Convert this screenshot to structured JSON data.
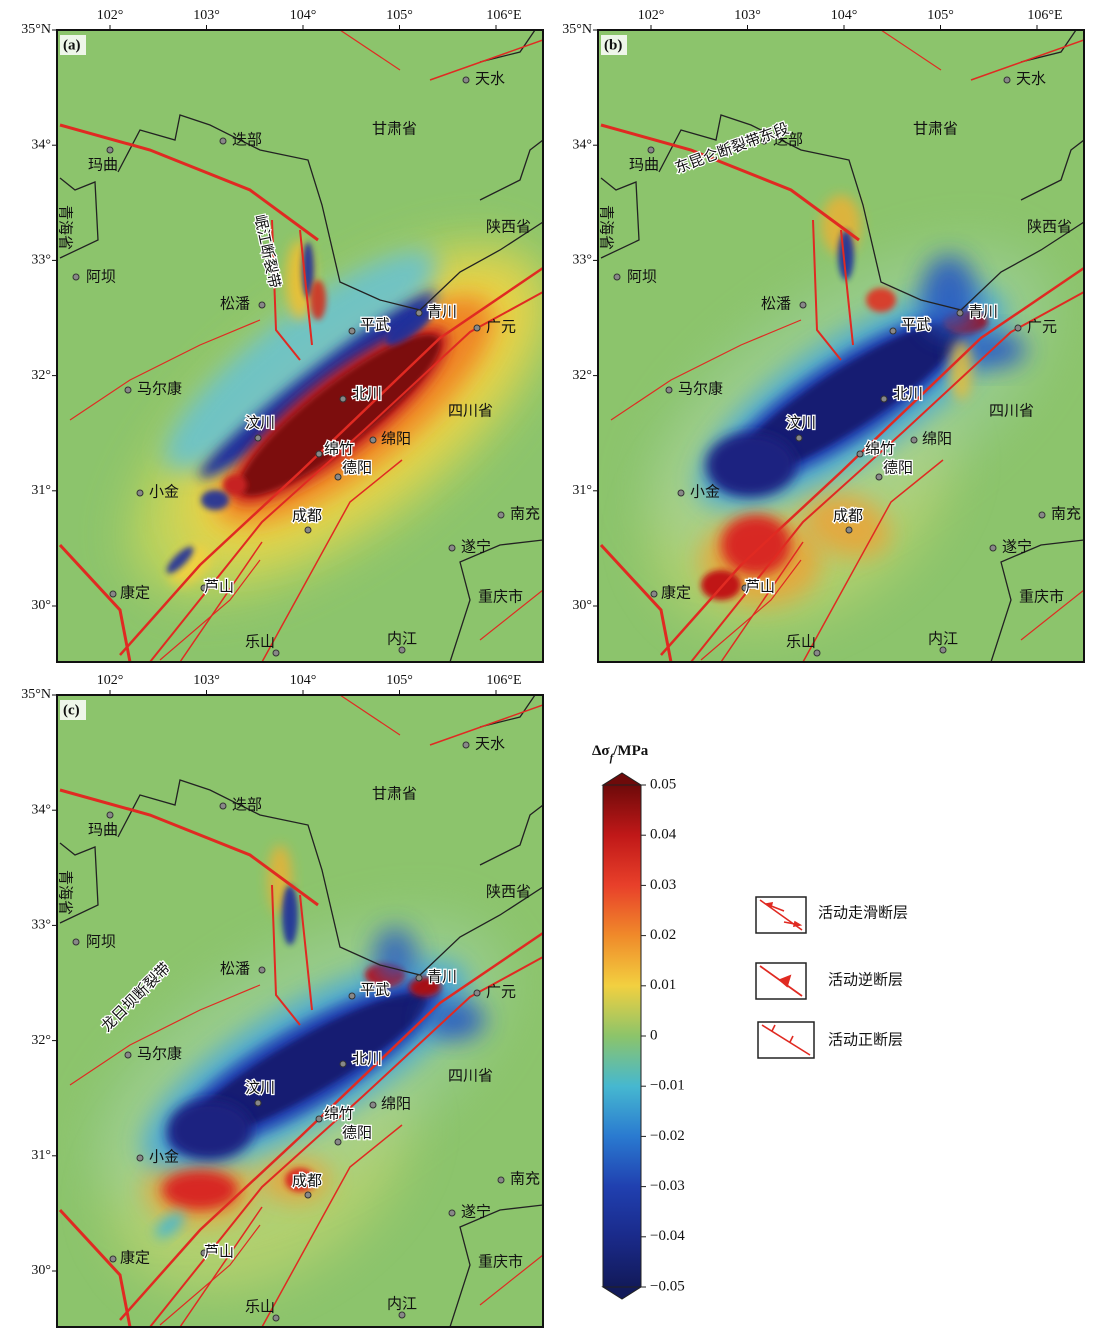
{
  "panels": [
    {
      "label": "(a)",
      "fault_zone": "岷江断裂带"
    },
    {
      "label": "(b)",
      "fault_zone": "东昆仑断裂带东段"
    },
    {
      "label": "(c)",
      "fault_zone": "龙日坝断裂带"
    }
  ],
  "x_labels": [
    "102°",
    "103°",
    "104°",
    "105°",
    "106°E"
  ],
  "y_labels": [
    "35°N",
    "34°",
    "33°",
    "32°",
    "31°",
    "30°"
  ],
  "places": [
    "天水",
    "甘肃省",
    "迭部",
    "玛曲",
    "青海省",
    "陕西省",
    "阿坝",
    "松潘",
    "平武",
    "青川",
    "广元",
    "马尔康",
    "北川",
    "四川省",
    "汶川",
    "绵竹",
    "绵阳",
    "德阳",
    "小金",
    "成都",
    "南充",
    "遂宁",
    "康定",
    "芦山",
    "重庆市",
    "乐山",
    "内江"
  ],
  "colorbar": {
    "title": "Δσ",
    "subscript": "f",
    "unit": "/MPa",
    "range": [
      -0.05,
      0.05
    ],
    "ticks": [
      0.05,
      0.04,
      0.03,
      0.02,
      0.01,
      0,
      {
        "value": -0.01,
        "label": "−0.01"
      },
      {
        "value": -0.02,
        "label": "−0.02"
      },
      {
        "value": -0.03,
        "label": "−0.03"
      },
      {
        "value": -0.04,
        "label": "−0.04"
      },
      {
        "value": -0.05,
        "label": "−0.05"
      }
    ]
  },
  "legend": [
    "活动走滑断层",
    "活动逆断层",
    "活动正断层"
  ]
}
